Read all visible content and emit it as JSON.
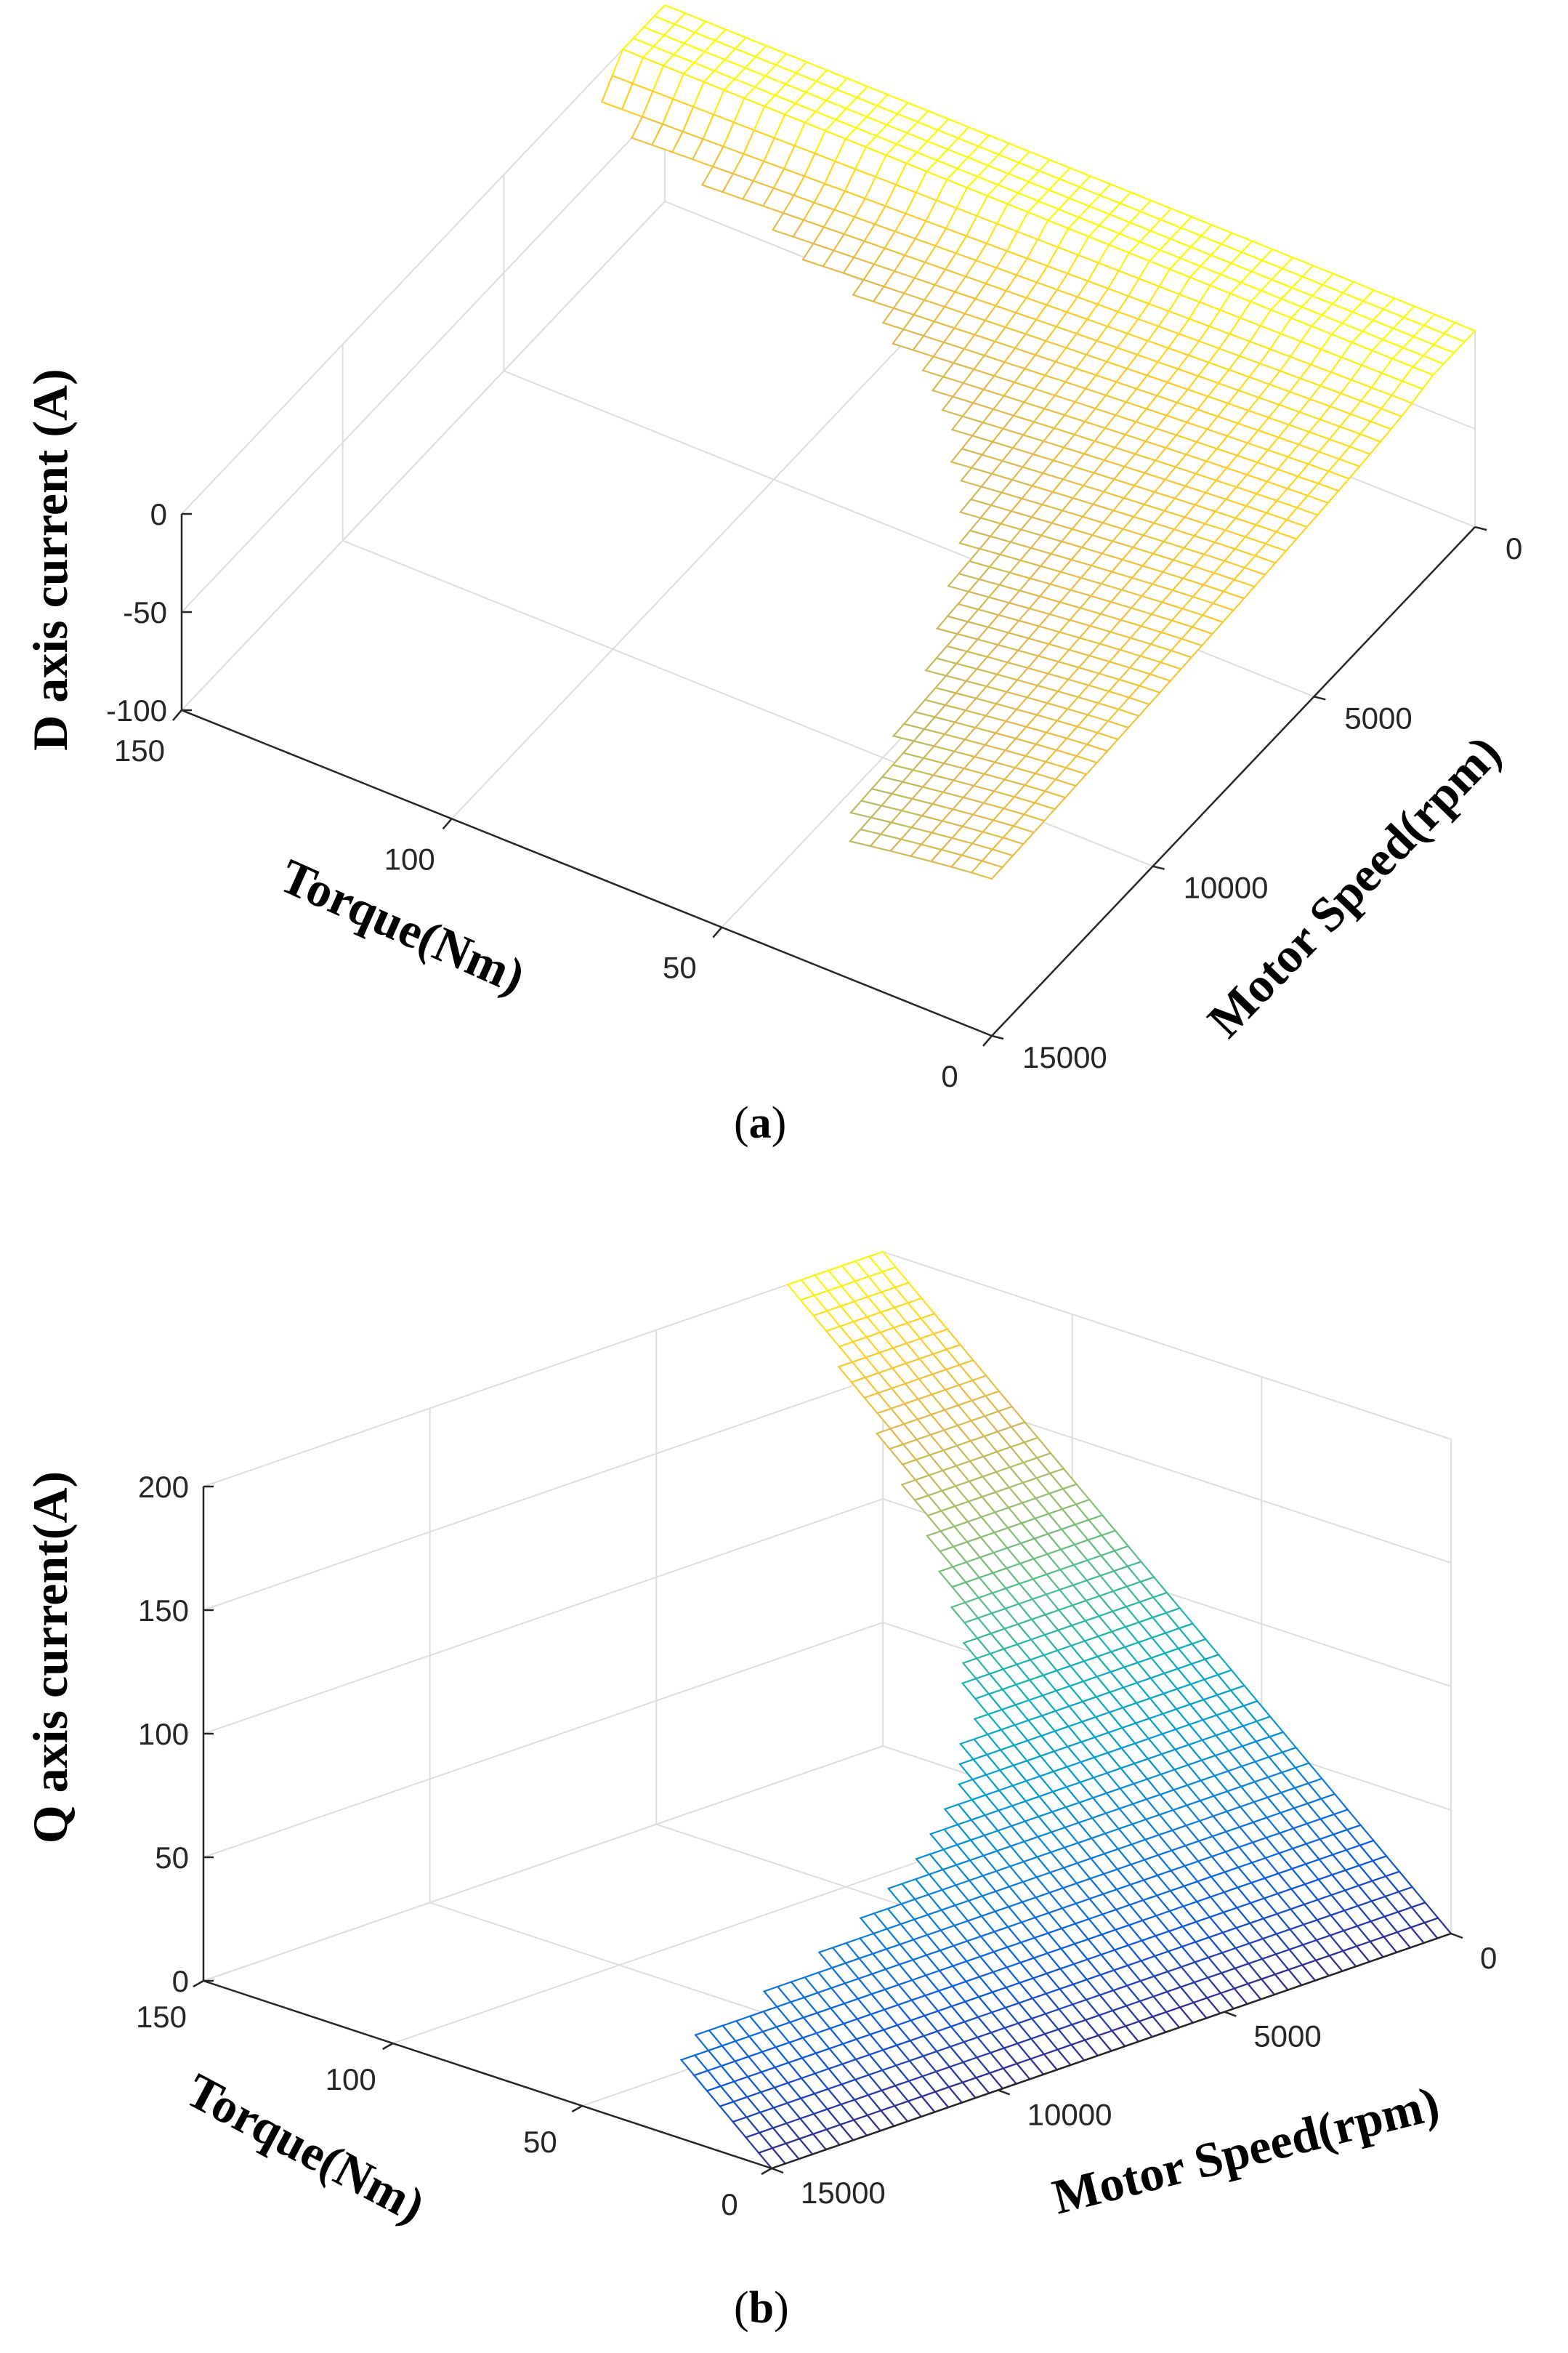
{
  "chart_data": [
    {
      "type": "surface",
      "caption": "a",
      "zlabel": "D axis current (A)",
      "xlabel": "Torque(Nm)",
      "ylabel": "Motor Speed(rpm)",
      "torque_ticks": [
        "0",
        "50",
        "100",
        "150"
      ],
      "speed_ticks": [
        "0",
        "5000",
        "10000",
        "15000"
      ],
      "current_ticks": [
        "0",
        "-50",
        "-100"
      ],
      "torque_range": [
        0,
        150
      ],
      "speed_range": [
        0,
        15000
      ],
      "current_range": [
        -100,
        0
      ],
      "surface": {
        "description": "Id = 0 below base speed; becomes increasingly negative (field weakening) with speed and torque, down to about -100 A at max torque and high speed",
        "base_speed": 1500,
        "min_value": -100,
        "colormap": "parula"
      }
    },
    {
      "type": "surface",
      "caption": "b",
      "zlabel": "Q axis current(A)",
      "xlabel": "Torque(Nm)",
      "ylabel": "Motor Speed(rpm)",
      "torque_ticks": [
        "0",
        "50",
        "100",
        "150"
      ],
      "speed_ticks": [
        "0",
        "5000",
        "10000",
        "15000"
      ],
      "current_ticks": [
        "0",
        "50",
        "100",
        "150",
        "200"
      ],
      "torque_range": [
        0,
        150
      ],
      "speed_range": [
        0,
        15000
      ],
      "current_range": [
        0,
        200
      ],
      "surface": {
        "description": "Iq rises roughly linearly with torque up to about 200 A at 150 Nm; feasible torque drops as speed increases",
        "max_value": 200,
        "colormap": "parula"
      }
    }
  ]
}
